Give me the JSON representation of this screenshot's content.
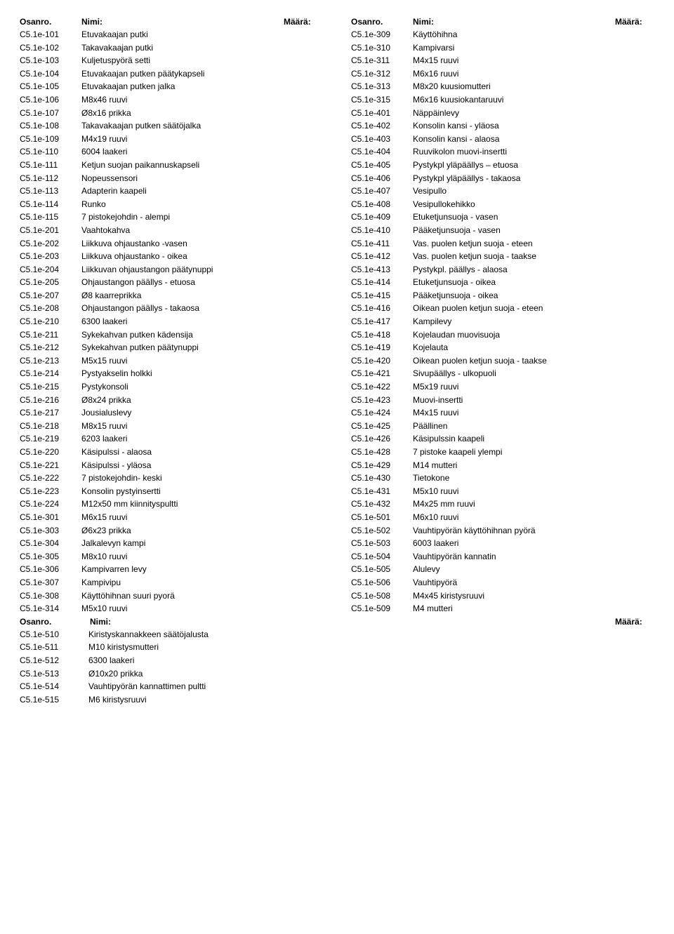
{
  "headers": {
    "osanro": "Osanro.",
    "nimi": "Nimi:",
    "maara": "Määrä:"
  },
  "left": [
    {
      "p": "C5.1e-101",
      "n": "Etuvakaajan putki"
    },
    {
      "p": "C5.1e-102",
      "n": "Takavakaajan putki"
    },
    {
      "p": "C5.1e-103",
      "n": "Kuljetuspyörä setti"
    },
    {
      "p": "C5.1e-104",
      "n": "Etuvakaajan putken päätykapseli"
    },
    {
      "p": "C5.1e-105",
      "n": "Etuvakaajan putken jalka"
    },
    {
      "p": "C5.1e-106",
      "n": "M8x46 ruuvi"
    },
    {
      "p": "C5.1e-107",
      "n": "Ø8x16 prikka"
    },
    {
      "p": "C5.1e-108",
      "n": "Takavakaajan putken säätöjalka"
    },
    {
      "p": "C5.1e-109",
      "n": "M4x19 ruuvi"
    },
    {
      "p": "C5.1e-110",
      "n": "6004 laakeri"
    },
    {
      "p": "C5.1e-111",
      "n": "Ketjun suojan paikannuskapseli"
    },
    {
      "p": "C5.1e-112",
      "n": "Nopeussensori"
    },
    {
      "p": "C5.1e-113",
      "n": "Adapterin kaapeli"
    },
    {
      "p": "C5.1e-114",
      "n": "Runko"
    },
    {
      "p": "C5.1e-115",
      "n": "7 pistokejohdin - alempi"
    },
    {
      "p": "C5.1e-201",
      "n": "Vaahtokahva"
    },
    {
      "p": "C5.1e-202",
      "n": "Liikkuva ohjaustanko -vasen"
    },
    {
      "p": "C5.1e-203",
      "n": "Liikkuva ohjaustanko - oikea"
    },
    {
      "p": "C5.1e-204",
      "n": "Liikkuvan ohjaustangon päätynuppi"
    },
    {
      "p": "C5.1e-205",
      "n": "Ohjaustangon päällys - etuosa"
    },
    {
      "p": "C5.1e-207",
      "n": "Ø8 kaarreprikka"
    },
    {
      "p": "C5.1e-208",
      "n": "Ohjaustangon päällys - takaosa"
    },
    {
      "p": "C5.1e-210",
      "n": "6300 laakeri"
    },
    {
      "p": "C5.1e-211",
      "n": "Sykekahvan putken kädensija"
    },
    {
      "p": "C5.1e-212",
      "n": "Sykekahvan putken päätynuppi"
    },
    {
      "p": "C5.1e-213",
      "n": "M5x15 ruuvi"
    },
    {
      "p": "C5.1e-214",
      "n": "Pystyakselin holkki"
    },
    {
      "p": "C5.1e-215",
      "n": "Pystykonsoli"
    },
    {
      "p": "C5.1e-216",
      "n": "Ø8x24 prikka"
    },
    {
      "p": "C5.1e-217",
      "n": "Jousialuslevy"
    },
    {
      "p": "C5.1e-218",
      "n": "M8x15 ruuvi"
    },
    {
      "p": "C5.1e-219",
      "n": "6203 laakeri"
    },
    {
      "p": "C5.1e-220",
      "n": "Käsipulssi - alaosa"
    },
    {
      "p": "C5.1e-221",
      "n": "Käsipulssi - yläosa"
    },
    {
      "p": "C5.1e-222",
      "n": "7 pistokejohdin- keski"
    },
    {
      "p": "C5.1e-223",
      "n": "Konsolin pystyinsertti"
    },
    {
      "p": "C5.1e-224",
      "n": "M12x50 mm kiinnityspultti"
    },
    {
      "p": "C5.1e-301",
      "n": "M6x15 ruuvi"
    },
    {
      "p": "C5.1e-303",
      "n": "Ø6x23 prikka"
    },
    {
      "p": "C5.1e-304",
      "n": "Jalkalevyn kampi"
    },
    {
      "p": "C5.1e-305",
      "n": "M8x10 ruuvi"
    },
    {
      "p": "C5.1e-306",
      "n": "Kampivarren levy"
    },
    {
      "p": "C5.1e-307",
      "n": "Kampivipu"
    },
    {
      "p": "C5.1e-308",
      "n": "Käyttöhihnan suuri pyorä"
    },
    {
      "p": "C5.1e-314",
      "n": "M5x10 ruuvi"
    }
  ],
  "right": [
    {
      "p": "C5.1e-309",
      "n": "Käyttöhihna"
    },
    {
      "p": "C5.1e-310",
      "n": "Kampivarsi"
    },
    {
      "p": "C5.1e-311",
      "n": "M4x15 ruuvi"
    },
    {
      "p": "C5.1e-312",
      "n": "M6x16 ruuvi"
    },
    {
      "p": "C5.1e-313",
      "n": "M8x20 kuusiomutteri"
    },
    {
      "p": "C5.1e-315",
      "n": "M6x16 kuusiokantaruuvi"
    },
    {
      "p": "C5.1e-401",
      "n": "Näppäinlevy"
    },
    {
      "p": "C5.1e-402",
      "n": "Konsolin kansi - yläosa"
    },
    {
      "p": "C5.1e-403",
      "n": "Konsolin kansi - alaosa"
    },
    {
      "p": "C5.1e-404",
      "n": "Ruuvikolon muovi-insertti"
    },
    {
      "p": "C5.1e-405",
      "n": "Pystykpl yläpäällys – etuosa"
    },
    {
      "p": "C5.1e-406",
      "n": "Pystykpl yläpäällys - takaosa"
    },
    {
      "p": "C5.1e-407",
      "n": "Vesipullo"
    },
    {
      "p": "C5.1e-408",
      "n": "Vesipullokehikko"
    },
    {
      "p": "C5.1e-409",
      "n": "Etuketjunsuoja - vasen"
    },
    {
      "p": "C5.1e-410",
      "n": "Pääketjunsuoja - vasen"
    },
    {
      "p": "C5.1e-411",
      "n": "Vas. puolen ketjun suoja - eteen"
    },
    {
      "p": "C5.1e-412",
      "n": "Vas. puolen ketjun suoja - taakse"
    },
    {
      "p": "C5.1e-413",
      "n": "Pystykpl. päällys - alaosa"
    },
    {
      "p": "C5.1e-414",
      "n": "Etuketjunsuoja - oikea"
    },
    {
      "p": "C5.1e-415",
      "n": "Pääketjunsuoja - oikea"
    },
    {
      "p": "C5.1e-416",
      "n": "Oikean puolen ketjun suoja - eteen"
    },
    {
      "p": "C5.1e-417",
      "n": "Kampilevy"
    },
    {
      "p": "C5.1e-418",
      "n": "Kojelaudan muovisuoja"
    },
    {
      "p": "C5.1e-419",
      "n": "Kojelauta"
    },
    {
      "p": "C5.1e-420",
      "n": "Oikean puolen ketjun suoja - taakse"
    },
    {
      "p": "C5.1e-421",
      "n": "Sivupäällys - ulkopuoli"
    },
    {
      "p": "C5.1e-422",
      "n": "M5x19 ruuvi"
    },
    {
      "p": "C5.1e-423",
      "n": "Muovi-insertti"
    },
    {
      "p": "C5.1e-424",
      "n": "M4x15 ruuvi"
    },
    {
      "p": "C5.1e-425",
      "n": "Päällinen"
    },
    {
      "p": "C5.1e-426",
      "n": "Käsipulssin kaapeli"
    },
    {
      "p": "C5.1e-428",
      "n": "7 pistoke kaapeli ylempi"
    },
    {
      "p": "C5.1e-429",
      "n": "M14 mutteri"
    },
    {
      "p": "C5.1e-430",
      "n": "Tietokone"
    },
    {
      "p": "C5.1e-431",
      "n": "M5x10 ruuvi"
    },
    {
      "p": "C5.1e-432",
      "n": "M4x25 mm ruuvi"
    },
    {
      "p": "C5.1e-501",
      "n": "M6x10 ruuvi"
    },
    {
      "p": "C5.1e-502",
      "n": "Vauhtipyörän käyttöhihnan pyörä"
    },
    {
      "p": "C5.1e-503",
      "n": "6003 laakeri"
    },
    {
      "p": "C5.1e-504",
      "n": "Vauhtipyörän kannatin"
    },
    {
      "p": "C5.1e-505",
      "n": "Alulevy"
    },
    {
      "p": "C5.1e-506",
      "n": "Vauhtipyörä"
    },
    {
      "p": "C5.1e-508",
      "n": "M4x45 kiristysruuvi"
    },
    {
      "p": "C5.1e-509",
      "n": "M4 mutteri"
    }
  ],
  "bottom": [
    {
      "p": "C5.1e-510",
      "n": "Kiristyskannakkeen säätöjalusta"
    },
    {
      "p": "C5.1e-511",
      "n": "M10 kiristysmutteri"
    },
    {
      "p": "C5.1e-512",
      "n": "6300 laakeri"
    },
    {
      "p": "C5.1e-513",
      "n": "Ø10x20 prikka"
    },
    {
      "p": "C5.1e-514",
      "n": "Vauhtipyörän kannattimen pultti"
    },
    {
      "p": "C5.1e-515",
      "n": "M6 kiristysruuvi"
    }
  ]
}
